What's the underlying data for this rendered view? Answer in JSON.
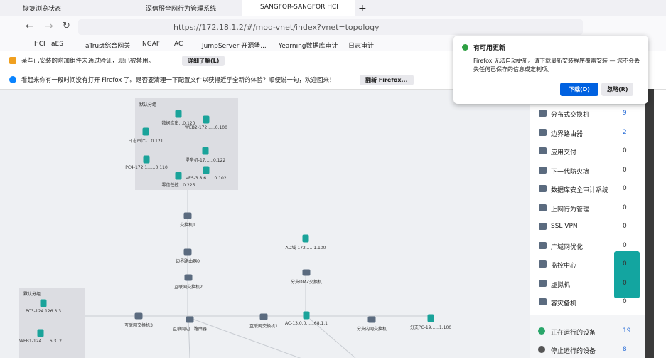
{
  "tabs": [
    "恢复浏览状态",
    "深信服全网行为管理系统",
    "SANGFOR-SANGFOR HCI"
  ],
  "address": "https://172.18.1.2/#/mod-vnet/index?vnet=topology",
  "bookmarks": [
    "HCI",
    "aES",
    "aTrust综合网关",
    "NGAF",
    "AC",
    "JumpServer 开源堡...",
    "Yearning数据库审计",
    "日志审计"
  ],
  "notices": [
    {
      "text": "某些已安装的附加组件未通过验证，现已被禁用。",
      "button": "详细了解(L)"
    },
    {
      "text": "看起来你有一段时间没有打开 Firefox 了。是否要清理一下配置文件以获得近乎全新的体验？顺便说一句，欢迎回来！",
      "button": "翻新 Firefox..."
    }
  ],
  "update_popup": {
    "title": "有可用更新",
    "body": "Firefox 无法自动更新。请下载最新安装程序覆盖安装 — 您不会丢失任何已保存的信息或定制项。",
    "download": "下载(D)",
    "dismiss": "忽略(R)"
  },
  "groups": [
    {
      "title": "默认分组",
      "nodes": [
        "数据库审...0.120",
        "WEB2-172......0.100",
        "日志审计-...0.121",
        "堡垒机-17......0.122",
        "PC4-172.1......0.110",
        "aES-3.8.6......0.102",
        "零信任控...0.225"
      ]
    },
    {
      "title": "默认分组",
      "nodes": [
        "PC3-124.126.3.3",
        "WEB1-124......6.3..2"
      ]
    }
  ],
  "topology_nodes": [
    "交换机1",
    "边界路由器0",
    "互联网交换机2",
    "AD域-172......1.100",
    "分支DMZ交换机",
    "互联网交换机3",
    "互联网边...路由器",
    "互联网交换机1",
    "AC-13.0.0......68.1.1",
    "分支内网交换机",
    "分支PC-19......1.100"
  ],
  "device_list": [
    {
      "name": "分布式交换机",
      "count": 9
    },
    {
      "name": "边界路由器",
      "count": 2
    },
    {
      "name": "应用交付",
      "count": 0
    },
    {
      "name": "下一代防火墙",
      "count": 0
    },
    {
      "name": "数据库安全审计系统",
      "count": 0
    },
    {
      "name": "上网行为管理",
      "count": 0
    },
    {
      "name": "SSL VPN",
      "count": 0
    },
    {
      "name": "广域网优化",
      "count": 0
    },
    {
      "name": "监控中心",
      "count": 0
    },
    {
      "name": "虚拟机",
      "count": 0
    },
    {
      "name": "容灾备机",
      "count": 0
    }
  ],
  "status": [
    {
      "name": "正在运行的设备",
      "count": 19
    },
    {
      "name": "停止运行的设备",
      "count": 8
    }
  ]
}
